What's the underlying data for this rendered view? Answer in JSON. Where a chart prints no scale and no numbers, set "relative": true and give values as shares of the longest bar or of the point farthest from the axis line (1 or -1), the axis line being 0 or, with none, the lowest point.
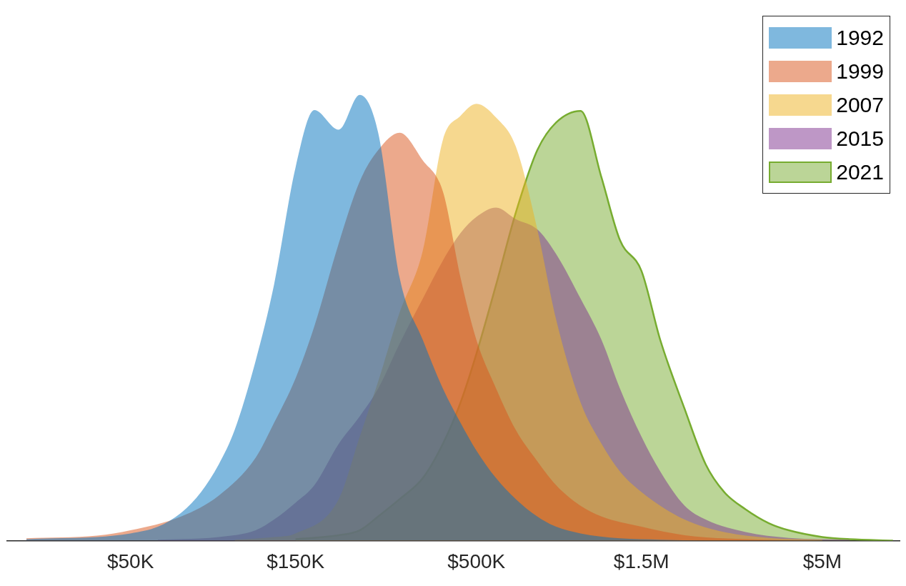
{
  "chart_data": {
    "type": "area",
    "relative": true,
    "log": "x",
    "xlim": [
      22000,
      8400000
    ],
    "xticks": [
      {
        "value": 50000,
        "label": "$50K"
      },
      {
        "value": 150000,
        "label": "$150K"
      },
      {
        "value": 500000,
        "label": "$500K"
      },
      {
        "value": 1500000,
        "label": "$1.5M"
      },
      {
        "value": 5000000,
        "label": "$5M"
      }
    ],
    "legend": "top right",
    "marker": "none",
    "grid": false,
    "series": [
      {
        "name": "1992",
        "color": "#0072bd",
        "x": [
          25000,
          30000,
          40000,
          50000,
          60000,
          70000,
          80000,
          90000,
          100000,
          115000,
          130000,
          150000,
          170000,
          200000,
          230000,
          260000,
          300000,
          350000,
          400000,
          450000,
          500000,
          570000,
          650000,
          750000,
          850000,
          1000000,
          1300000,
          1700000,
          2300000
        ],
        "values": [
          0.003,
          0.005,
          0.008,
          0.016,
          0.031,
          0.062,
          0.109,
          0.171,
          0.248,
          0.403,
          0.574,
          0.837,
          0.966,
          0.922,
          1.0,
          0.915,
          0.589,
          0.45,
          0.341,
          0.264,
          0.202,
          0.14,
          0.093,
          0.054,
          0.031,
          0.016,
          0.005,
          0.002,
          0
        ]
      },
      {
        "name": "1999",
        "color": "#d95319",
        "x": [
          25000,
          40000,
          50000,
          70000,
          90000,
          115000,
          130000,
          150000,
          170000,
          200000,
          230000,
          260000,
          300000,
          350000,
          400000,
          450000,
          500000,
          570000,
          650000,
          750000,
          850000,
          1000000,
          1150000,
          1500000,
          2000000,
          3000000,
          5000000
        ],
        "values": [
          0.005,
          0.011,
          0.023,
          0.054,
          0.101,
          0.186,
          0.264,
          0.364,
          0.481,
          0.667,
          0.806,
          0.876,
          0.915,
          0.853,
          0.783,
          0.589,
          0.45,
          0.341,
          0.248,
          0.178,
          0.124,
          0.078,
          0.054,
          0.031,
          0.012,
          0.003,
          0
        ]
      },
      {
        "name": "2007",
        "color": "#edb120",
        "x": [
          100000,
          130000,
          150000,
          200000,
          230000,
          260000,
          300000,
          350000,
          400000,
          450000,
          500000,
          570000,
          650000,
          750000,
          850000,
          1000000,
          1150000,
          1300000,
          1500000,
          2000000,
          2600000,
          3500000,
          5000000
        ],
        "values": [
          0.002,
          0.008,
          0.016,
          0.093,
          0.233,
          0.357,
          0.512,
          0.651,
          0.899,
          0.953,
          0.98,
          0.949,
          0.884,
          0.698,
          0.496,
          0.31,
          0.217,
          0.155,
          0.109,
          0.047,
          0.019,
          0.006,
          0.002
        ]
      },
      {
        "name": "2015",
        "color": "#7e2f8e",
        "x": [
          60000,
          90000,
          115000,
          130000,
          150000,
          170000,
          200000,
          230000,
          260000,
          300000,
          350000,
          400000,
          450000,
          500000,
          570000,
          650000,
          750000,
          850000,
          1000000,
          1150000,
          1300000,
          1500000,
          1700000,
          2000000,
          2300000,
          3000000,
          4000000,
          6000000
        ],
        "values": [
          0.002,
          0.008,
          0.023,
          0.047,
          0.085,
          0.124,
          0.217,
          0.279,
          0.341,
          0.442,
          0.543,
          0.628,
          0.69,
          0.726,
          0.747,
          0.721,
          0.698,
          0.643,
          0.543,
          0.45,
          0.341,
          0.233,
          0.155,
          0.078,
          0.047,
          0.019,
          0.006,
          0.002
        ]
      },
      {
        "name": "2021",
        "color": "#77ac30",
        "line_style": "solid",
        "x": [
          150000,
          200000,
          230000,
          260000,
          300000,
          350000,
          400000,
          450000,
          500000,
          570000,
          650000,
          750000,
          850000,
          1000000,
          1150000,
          1300000,
          1500000,
          1700000,
          2000000,
          2300000,
          2600000,
          3000000,
          3500000,
          4000000,
          5000000,
          6000000,
          8000000
        ],
        "values": [
          0.003,
          0.012,
          0.023,
          0.054,
          0.093,
          0.14,
          0.217,
          0.31,
          0.419,
          0.574,
          0.736,
          0.876,
          0.938,
          0.964,
          0.814,
          0.674,
          0.605,
          0.45,
          0.295,
          0.171,
          0.109,
          0.07,
          0.039,
          0.023,
          0.008,
          0.003,
          0
        ]
      }
    ]
  }
}
